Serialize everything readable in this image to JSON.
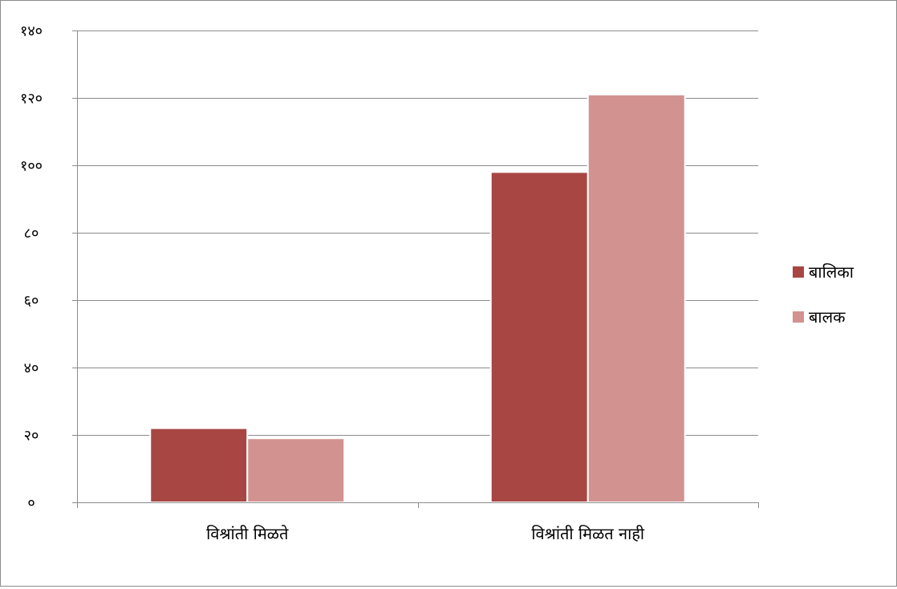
{
  "chart_data": {
    "type": "bar",
    "title": "",
    "xlabel": "",
    "ylabel": "",
    "categories": [
      "विश्रांती मिळते",
      "विश्रांती मिळत नाही"
    ],
    "series": [
      {
        "name": "बालिका",
        "values": [
          22,
          98
        ],
        "color": "#a84643"
      },
      {
        "name": "बालक",
        "values": [
          19,
          121
        ],
        "color": "#d29290"
      }
    ],
    "ylim": [
      0,
      140
    ],
    "yticks": [
      0,
      20,
      40,
      60,
      80,
      100,
      120,
      140
    ],
    "ytick_labels": [
      "०",
      "२०",
      "४०",
      "६०",
      "८०",
      "१००",
      "१२०",
      "१४०"
    ],
    "grid": true,
    "legend_position": "right",
    "gridline_color": "#8c8c8c"
  }
}
